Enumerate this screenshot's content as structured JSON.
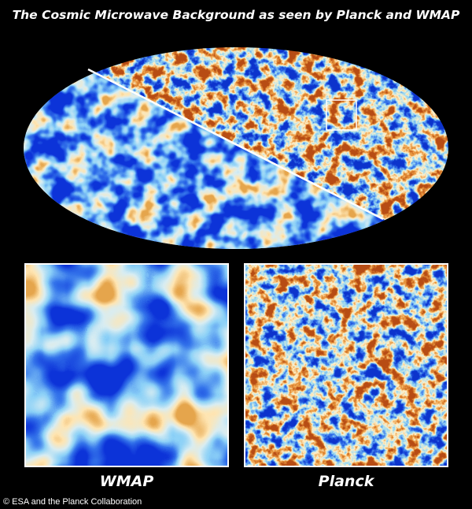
{
  "title": "The Cosmic Microwave Background as seen by Planck and WMAP",
  "panels": [
    {
      "label": "WMAP"
    },
    {
      "label": "Planck"
    }
  ],
  "credit": "© ESA and the Planck Collaboration"
}
